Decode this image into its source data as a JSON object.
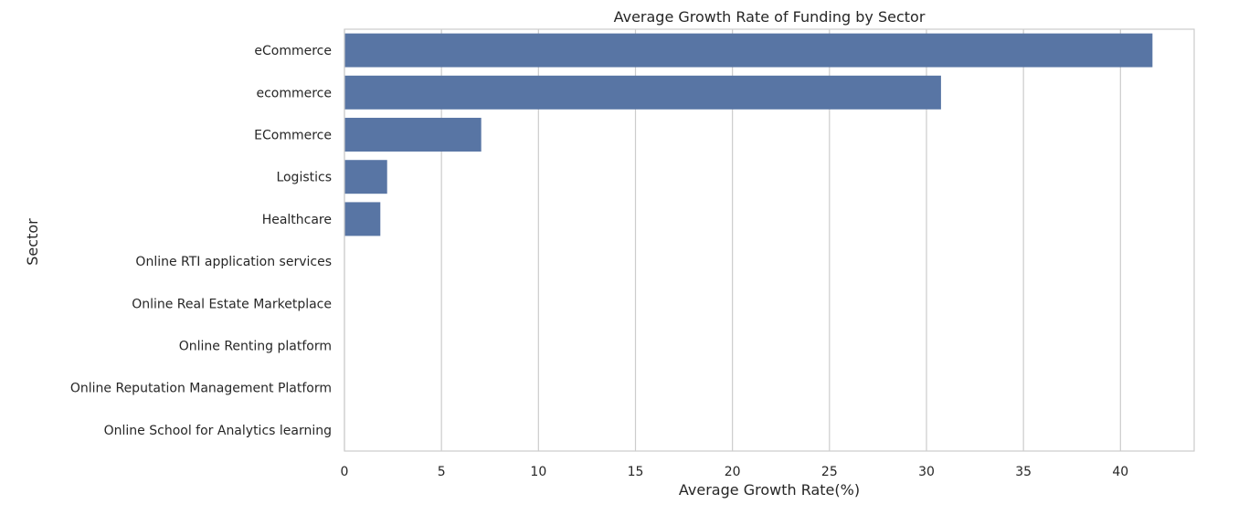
{
  "chart_data": {
    "type": "bar",
    "orientation": "horizontal",
    "title": "Average Growth Rate of Funding by Sector",
    "xlabel": "Average Growth Rate(%)",
    "ylabel": "Sector",
    "xlim": [
      0,
      43.8
    ],
    "xticks": [
      0,
      5,
      10,
      15,
      20,
      25,
      30,
      35,
      40
    ],
    "grid": "vertical",
    "categories": [
      "eCommerce",
      "ecommerce",
      "ECommerce",
      "Logistics",
      "Healthcare",
      "Online RTI application services",
      "Online Real Estate Marketplace",
      "Online Renting platform",
      "Online Reputation Management Platform",
      "Online School for Analytics learning"
    ],
    "values": [
      41.65,
      30.75,
      7.05,
      2.2,
      1.85,
      0,
      0,
      0,
      0,
      0
    ],
    "colors": {
      "bar": "#5875a4",
      "grid": "#cccccc",
      "spine": "#cccccc",
      "text": "#262626",
      "background": "#ffffff"
    }
  }
}
